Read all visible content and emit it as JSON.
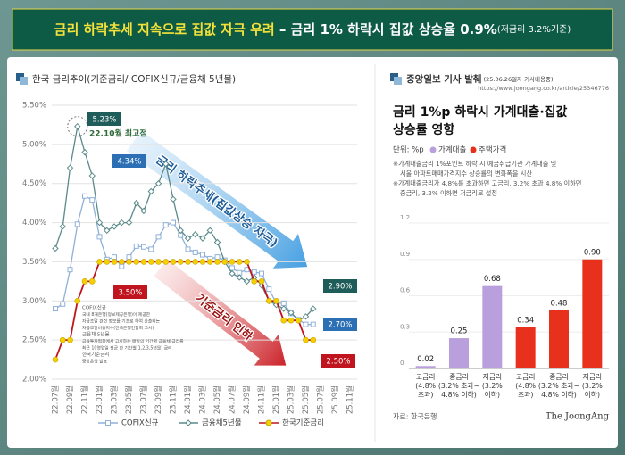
{
  "header": {
    "title_main": "금리 하락추세 지속으로 집값 자극 우려",
    "title_sub": " – 금리 1% 하락시 집값 상승율 0.9%",
    "title_note": "(저금리 3.2%기준)"
  },
  "chart_data": [
    {
      "type": "line",
      "title": "한국 금리추이(기준금리/ COFIX신규/금융채 5년물)",
      "categories": [
        "22.07월",
        null,
        "22.09월",
        null,
        "22.11월",
        null,
        "23.01월",
        null,
        "23.03월",
        null,
        "23.05월",
        null,
        "23.07월",
        null,
        "23.09월",
        null,
        "23.11월",
        null,
        "24.01월",
        null,
        "24.03월",
        null,
        "24.05월",
        null,
        "24.07월",
        null,
        "24.09월",
        null,
        "24.11월",
        null,
        "25.01월",
        null,
        "25.03월",
        null,
        "25.05월",
        null,
        "25.07월",
        null,
        "25.09월",
        null,
        "25.11월"
      ],
      "ylim": [
        2,
        5.5
      ],
      "yticks": [
        {
          "value": 2,
          "label": "2.00%"
        },
        {
          "value": 2.5,
          "label": "2.50%"
        },
        {
          "value": 3,
          "label": "3.00%"
        },
        {
          "value": 3.5,
          "label": "3.50%"
        },
        {
          "value": 4,
          "label": "4.00%"
        },
        {
          "value": 4.5,
          "label": "4.50%"
        },
        {
          "value": 5,
          "label": "5.00%"
        },
        {
          "value": 5.5,
          "label": "5.50%"
        }
      ],
      "grid": true,
      "series": [
        {
          "name": "COFIX신규",
          "color": "#8fb0d8",
          "marker": "square",
          "values": [
            2.9,
            2.96,
            3.4,
            3.98,
            4.34,
            4.29,
            3.82,
            3.53,
            3.56,
            3.44,
            3.56,
            3.7,
            3.69,
            3.66,
            3.82,
            3.97,
            4.0,
            3.84,
            3.66,
            3.62,
            3.59,
            3.54,
            3.56,
            3.52,
            3.42,
            3.36,
            3.4,
            3.37,
            3.35,
            3.15,
            2.97,
            2.97,
            2.84,
            2.76,
            2.7,
            2.7,
            null,
            null,
            null,
            null,
            null
          ]
        },
        {
          "name": "금융채5년물",
          "color": "#5b8a8a",
          "marker": "diamond",
          "values": [
            3.67,
            3.95,
            4.7,
            5.23,
            4.9,
            4.6,
            4.0,
            3.9,
            3.95,
            4.0,
            4.0,
            4.25,
            4.15,
            4.4,
            4.5,
            4.75,
            4.3,
            3.9,
            3.8,
            3.85,
            3.8,
            3.9,
            3.75,
            3.5,
            3.35,
            3.3,
            3.25,
            3.3,
            3.2,
            3.0,
            2.95,
            2.9,
            2.85,
            2.75,
            2.8,
            2.9,
            null,
            null,
            null,
            null,
            null
          ]
        },
        {
          "name": "한국기준금리",
          "color": "#c0141e",
          "marker": "circle",
          "values": [
            2.25,
            2.5,
            2.5,
            3.0,
            3.25,
            3.25,
            3.5,
            3.5,
            3.5,
            3.5,
            3.5,
            3.5,
            3.5,
            3.5,
            3.5,
            3.5,
            3.5,
            3.5,
            3.5,
            3.5,
            3.5,
            3.5,
            3.5,
            3.5,
            3.5,
            3.5,
            3.5,
            3.25,
            3.25,
            3.0,
            3.0,
            2.75,
            2.75,
            2.75,
            2.5,
            2.5,
            null,
            null,
            null,
            null,
            null
          ]
        }
      ],
      "annotations": [
        "5.23%",
        "22.10월 최고점",
        "4.34%",
        "3.50%",
        "2.90%",
        "2.70%",
        "2.50%",
        "금리 하락추세(집값상승 자극)",
        "기준금리 인하"
      ],
      "note": [
        "COFIX신규",
        "국내 8개은행(정보제공은행)이 제공한",
        "자금조달 관련 정보를 기초로 하여 산출되는",
        "자금조달비용지수(전국은행연합회 고시)",
        "금융채 5년물",
        "금융투자협회에서 고시하는 매일의 기간별 금융채 금리를",
        "최근 10영업일 평균 한 기간별(1,2,3,5년물) 금리",
        "한국기준금리",
        "중앙은행 발표"
      ]
    },
    {
      "type": "bar",
      "section_title": "중앙일보 기사 발췌",
      "section_note": "(25.06.26일자 기사내용중)",
      "url": "https://www.joongang.co.kr/article/25346776",
      "title": [
        "금리 1%p 하락시 가계대출·집값",
        "상승률 영향"
      ],
      "unit": "단위: %p",
      "notes": [
        "※가계대출금리 1%포인트 하락 시 예금취급기관 가계대출 및",
        "서울 아파트매매가격지수 상승률의 변화폭을 시산",
        "※가계대출금리가 4.8%를 초과하면 고금리, 3.2% 초과 4.8% 이하면",
        "중금리, 3.2% 이하면 저금리로 설정"
      ],
      "categories": [
        [
          "고금리",
          "(4.8%",
          "초과)"
        ],
        [
          "중금리",
          "(3.2% 초과~",
          "4.8% 이하)"
        ],
        [
          "저금리",
          "(3.2%",
          "이하)"
        ],
        [
          "고금리",
          "(4.8%",
          "초과)"
        ],
        [
          "중금리",
          "(3.2% 초과~",
          "4.8% 이하)"
        ],
        [
          "저금리",
          "(3.2%",
          "이하)"
        ]
      ],
      "ylim": [
        0,
        1.2
      ],
      "yticks": [
        0,
        0.3,
        0.6,
        0.9,
        1.2
      ],
      "series": [
        {
          "name": "가계대출",
          "color": "#b9a0dc",
          "values": [
            0.02,
            0.25,
            0.68,
            null,
            null,
            null
          ]
        },
        {
          "name": "주택가격",
          "color": "#e8311c",
          "values": [
            null,
            null,
            null,
            0.34,
            0.48,
            0.9
          ],
          "value_labels": [
            null,
            null,
            null,
            "0.34",
            "0.48",
            "0.90"
          ]
        }
      ],
      "source": "자료: 한국은행",
      "brand": "The JoongAng"
    }
  ]
}
